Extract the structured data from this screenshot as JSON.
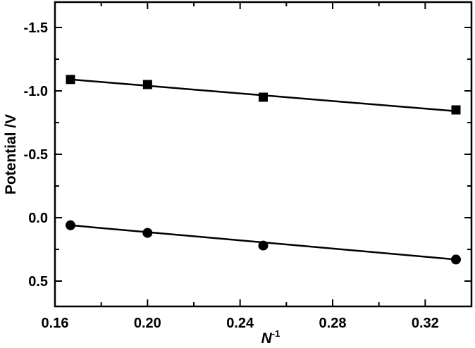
{
  "chart_data": {
    "type": "scatter",
    "xlabel": "N",
    "xlabel_sup": "-1",
    "ylabel": "Potential /V",
    "xlim": [
      0.16,
      0.34
    ],
    "ylim": [
      0.7,
      -1.7
    ],
    "y_axis_inverted": true,
    "grid": false,
    "legend": "none",
    "xticks": [
      0.16,
      0.2,
      0.24,
      0.28,
      0.32
    ],
    "xtick_labels": [
      "0.16",
      "0.20",
      "0.24",
      "0.28",
      "0.32"
    ],
    "yticks": [
      -1.5,
      -1.0,
      -0.5,
      0.0,
      0.5
    ],
    "ytick_labels": [
      "-1.5",
      "-1.0",
      "-0.5",
      "0.0",
      "0.5"
    ],
    "series": [
      {
        "marker": "square",
        "x": [
          0.1667,
          0.2,
          0.25,
          0.3333
        ],
        "y": [
          -1.09,
          -1.05,
          -0.95,
          -0.85
        ],
        "fit": {
          "x": [
            0.1667,
            0.3333
          ],
          "y": [
            -1.09,
            -0.84
          ]
        }
      },
      {
        "marker": "circle",
        "x": [
          0.1667,
          0.2,
          0.25,
          0.3333
        ],
        "y": [
          0.06,
          0.12,
          0.22,
          0.33
        ],
        "fit": {
          "x": [
            0.1667,
            0.3333
          ],
          "y": [
            0.06,
            0.33
          ]
        }
      }
    ],
    "colors": {
      "marker": "#000000",
      "line": "#000000",
      "axes": "#000000"
    }
  }
}
